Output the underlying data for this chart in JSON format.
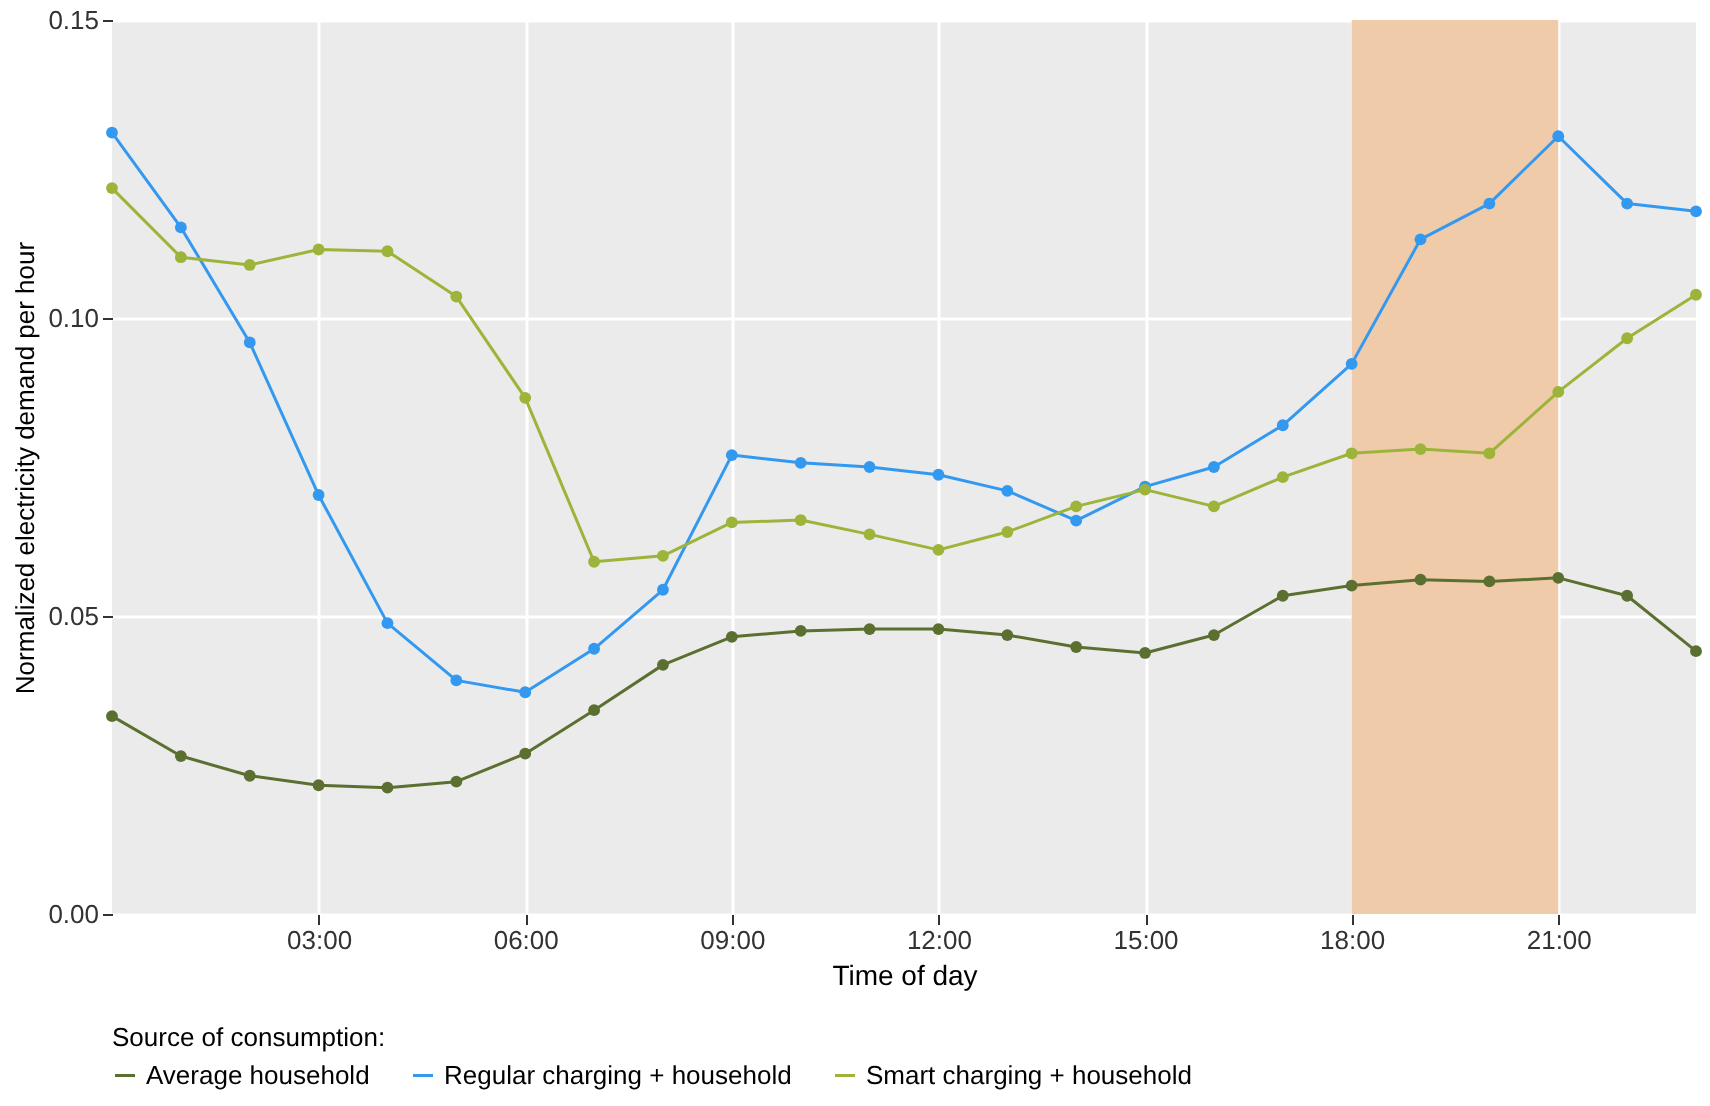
{
  "chart_data": {
    "type": "line",
    "xlabel": "Time of day",
    "ylabel": "Normalized electricity demand per hour",
    "legend_title": "Source of consumption:",
    "x": [
      0,
      1,
      2,
      3,
      4,
      5,
      6,
      7,
      8,
      9,
      10,
      11,
      12,
      13,
      14,
      15,
      16,
      17,
      18,
      19,
      20,
      21,
      22,
      23
    ],
    "series": [
      {
        "name": "Average household",
        "color": "#5b7030",
        "values": [
          0.0332,
          0.0265,
          0.0232,
          0.0216,
          0.0212,
          0.0222,
          0.0269,
          0.0342,
          0.0418,
          0.0465,
          0.0475,
          0.0478,
          0.0478,
          0.0468,
          0.0448,
          0.0438,
          0.0468,
          0.0534,
          0.0551,
          0.0561,
          0.0558,
          0.0564,
          0.0534,
          0.0441
        ]
      },
      {
        "name": "Regular charging + household",
        "color": "#3399f0",
        "values": [
          0.1311,
          0.1152,
          0.0959,
          0.0703,
          0.0488,
          0.0392,
          0.0372,
          0.0445,
          0.0544,
          0.077,
          0.0757,
          0.075,
          0.0737,
          0.071,
          0.066,
          0.0717,
          0.075,
          0.082,
          0.0923,
          0.1132,
          0.1192,
          0.1305,
          0.1192,
          0.1179
        ]
      },
      {
        "name": "Smart charging + household",
        "color": "#9cb43a",
        "values": [
          0.1218,
          0.1102,
          0.1089,
          0.1115,
          0.1112,
          0.1036,
          0.0866,
          0.0591,
          0.0601,
          0.0657,
          0.0661,
          0.0637,
          0.0611,
          0.0641,
          0.0684,
          0.0712,
          0.0684,
          0.0733,
          0.0773,
          0.078,
          0.0773,
          0.0876,
          0.0966,
          0.1039
        ]
      }
    ],
    "xlim": [
      0,
      23
    ],
    "xticks": [
      {
        "value": 3,
        "label": "03:00"
      },
      {
        "value": 6,
        "label": "06:00"
      },
      {
        "value": 9,
        "label": "09:00"
      },
      {
        "value": 12,
        "label": "12:00"
      },
      {
        "value": 15,
        "label": "15:00"
      },
      {
        "value": 18,
        "label": "18:00"
      },
      {
        "value": 21,
        "label": "21:00"
      }
    ],
    "ylim": [
      0,
      0.15
    ],
    "yticks": [
      {
        "value": 0,
        "label": "0.00"
      },
      {
        "value": 0.05,
        "label": "0.05"
      },
      {
        "value": 0.1,
        "label": "0.10"
      },
      {
        "value": 0.15,
        "label": "0.15"
      }
    ],
    "bands": [
      {
        "axis": "x",
        "from": 18,
        "to": 21,
        "color": "#f0cba9"
      }
    ],
    "grid": true,
    "legend": "bottom",
    "marker": "circle",
    "line_style": "solid"
  }
}
